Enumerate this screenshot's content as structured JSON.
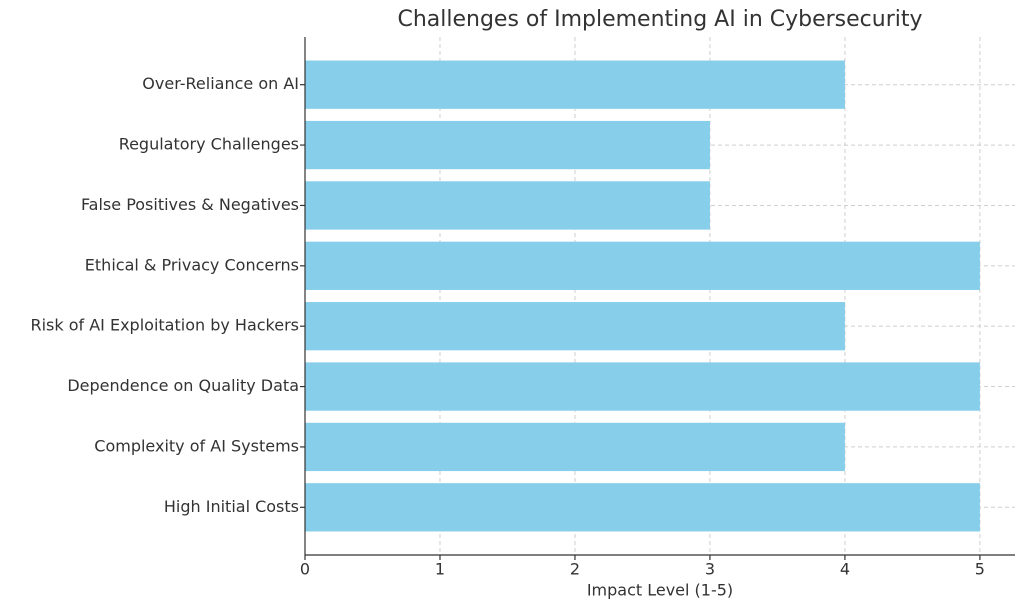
{
  "chart_data": {
    "type": "barh",
    "title": "Challenges of Implementing AI in Cybersecurity",
    "x_label": "Impact Level (1-5)",
    "categories": [
      "High Initial Costs",
      "Complexity of AI Systems",
      "Dependence on Quality Data",
      "Risk of AI Exploitation by Hackers",
      "Ethical & Privacy Concerns",
      "False Positives & Negatives",
      "Regulatory Challenges",
      "Over-Reliance on AI"
    ],
    "values": [
      5,
      4,
      5,
      4,
      5,
      3,
      3,
      4
    ],
    "color": "#87ceeb",
    "xlim": [
      0,
      5.26
    ],
    "xticks": [
      0,
      1,
      2,
      3,
      4,
      5
    ],
    "grid": true
  }
}
